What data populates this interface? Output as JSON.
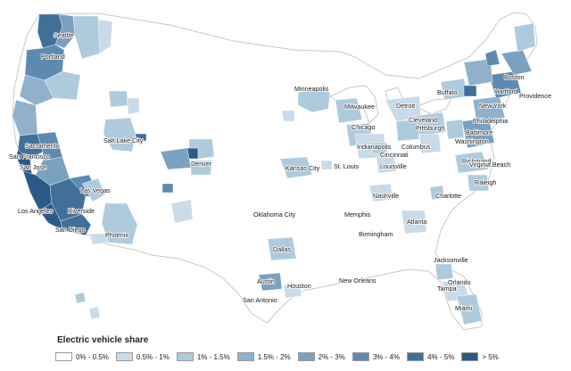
{
  "legend": {
    "title": "Electric vehicle share",
    "items": [
      {
        "label": "0% - 0.5%",
        "color": "#ffffff"
      },
      {
        "label": "0.5% - 1%",
        "color": "#c9dbe8"
      },
      {
        "label": "1% - 1.5%",
        "color": "#aecbdd"
      },
      {
        "label": "1.5% - 2%",
        "color": "#8fb1cb"
      },
      {
        "label": "2% - 3%",
        "color": "#7aa1bf"
      },
      {
        "label": "3% - 4%",
        "color": "#5e8ab0"
      },
      {
        "label": "4% - 5%",
        "color": "#416f9a"
      },
      {
        "label": "> 5%",
        "color": "#2c5a86"
      }
    ]
  },
  "cities": [
    "Seattle",
    "Portland",
    "Sacramento",
    "San Francisco",
    "San Jose",
    "Los Angeles",
    "San Diego",
    "Riverside",
    "Las Vegas",
    "Phoenix",
    "Salt Lake City",
    "Denver",
    "Minneapolis",
    "Milwaukee",
    "Chicago",
    "Detroit",
    "Cleveland",
    "Pittsburgh",
    "Columbus",
    "Indianapolis",
    "Cincinnati",
    "Louisville",
    "Kansas City",
    "St. Louis",
    "Nashville",
    "Charlotte",
    "Raleigh",
    "Richmond",
    "Virginia Beach",
    "Washington",
    "Baltimore",
    "Philadelphia",
    "New York",
    "Hartford",
    "Providence",
    "Boston",
    "Buffalo",
    "Oklahoma City",
    "Memphis",
    "Atlanta",
    "Birmingham",
    "Dallas",
    "Austin",
    "Houston",
    "San Antonio",
    "New Orleans",
    "Jacksonville",
    "Orlando",
    "Tampa",
    "Miami"
  ]
}
